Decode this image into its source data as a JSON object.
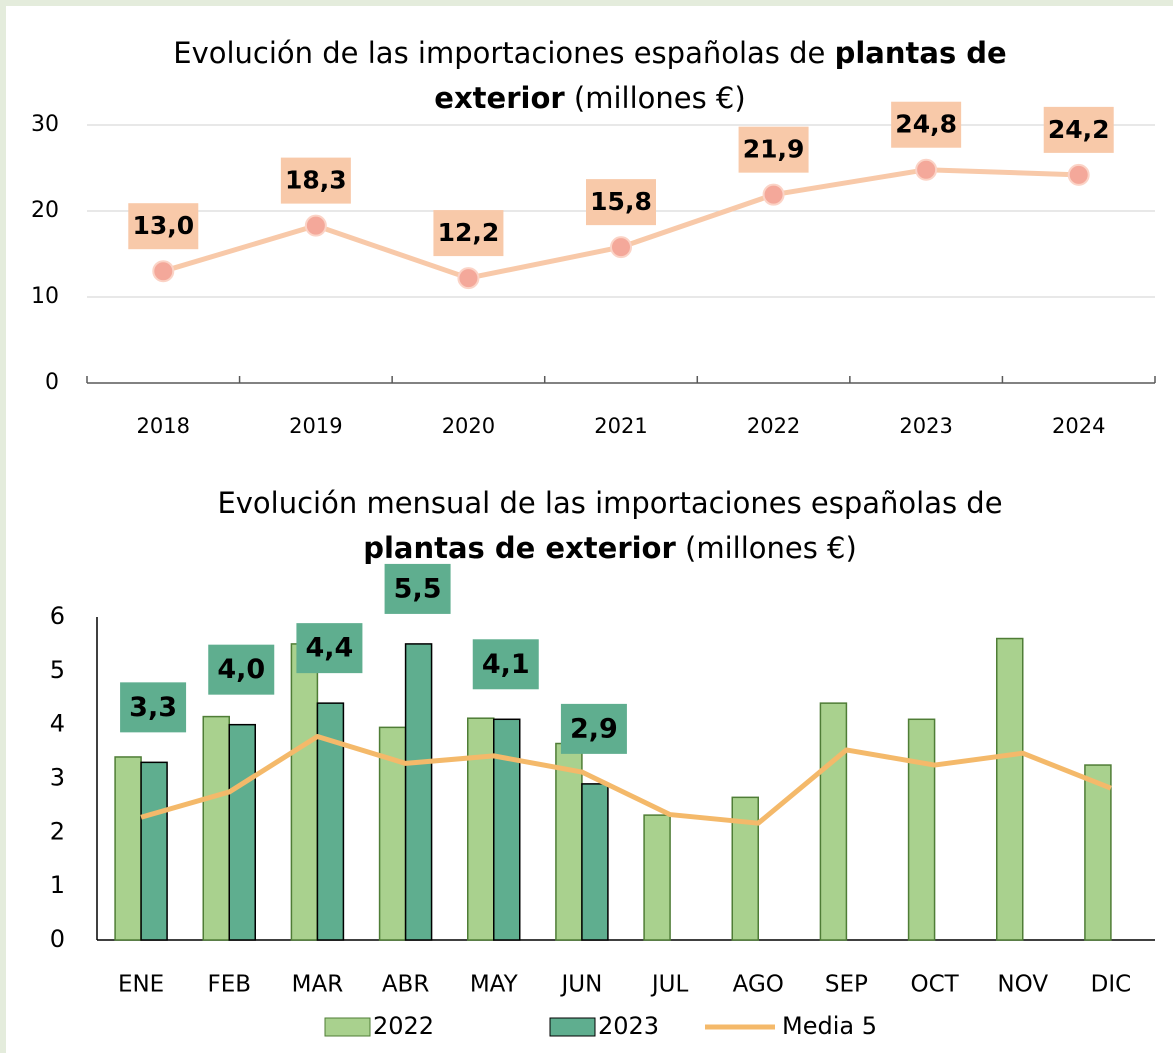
{
  "charts": [
    {
      "type": "line",
      "title": [
        "Evolución de las importaciones españolas de",
        "plantas de",
        "exterior",
        "(millones  €)"
      ],
      "categories": [
        "2018",
        "2019",
        "2020",
        "2021",
        "2022",
        "2023",
        "2024"
      ],
      "values": [
        13.0,
        18.3,
        12.2,
        15.8,
        21.9,
        24.8,
        24.2
      ],
      "value_labels": [
        "13,0",
        "18,3",
        "12,2",
        "15,8",
        "21,9",
        "24,8",
        "24,2"
      ],
      "color": "#f8c9a9",
      "ylim": [
        0,
        30
      ],
      "yticks": [
        0,
        10,
        20,
        30
      ],
      "grid": true
    },
    {
      "type": "bar",
      "title": [
        "Evolución mensual de las importaciones españolas de",
        "plantas de exterior",
        "(millones €)"
      ],
      "categories": [
        "ENE",
        "FEB",
        "MAR",
        "ABR",
        "MAY",
        "JUN",
        "JUL",
        "AGO",
        "SEP",
        "OCT",
        "NOV",
        "DIC"
      ],
      "series": [
        {
          "name": "2022",
          "color": "#a9d18e",
          "values": [
            3.4,
            4.15,
            5.5,
            3.95,
            4.12,
            3.65,
            2.32,
            2.65,
            4.4,
            4.1,
            5.6,
            3.25
          ]
        },
        {
          "name": "2023",
          "color": "#5fae8f",
          "values": [
            3.3,
            4.0,
            4.4,
            5.5,
            4.1,
            2.9,
            null,
            null,
            null,
            null,
            null,
            null
          ],
          "value_labels": [
            "3,3",
            "4,0",
            "4,4",
            "5,5",
            "4,1",
            "2,9",
            null,
            null,
            null,
            null,
            null,
            null
          ]
        },
        {
          "name": "Media 5",
          "type": "line",
          "color": "#f4b96a",
          "values": [
            2.28,
            2.75,
            3.78,
            3.28,
            3.42,
            3.12,
            2.33,
            2.17,
            3.53,
            3.25,
            3.47,
            2.82
          ]
        }
      ],
      "ylim": [
        0,
        6
      ],
      "yticks": [
        0,
        1,
        2,
        3,
        4,
        5,
        6
      ],
      "grid": false
    }
  ]
}
